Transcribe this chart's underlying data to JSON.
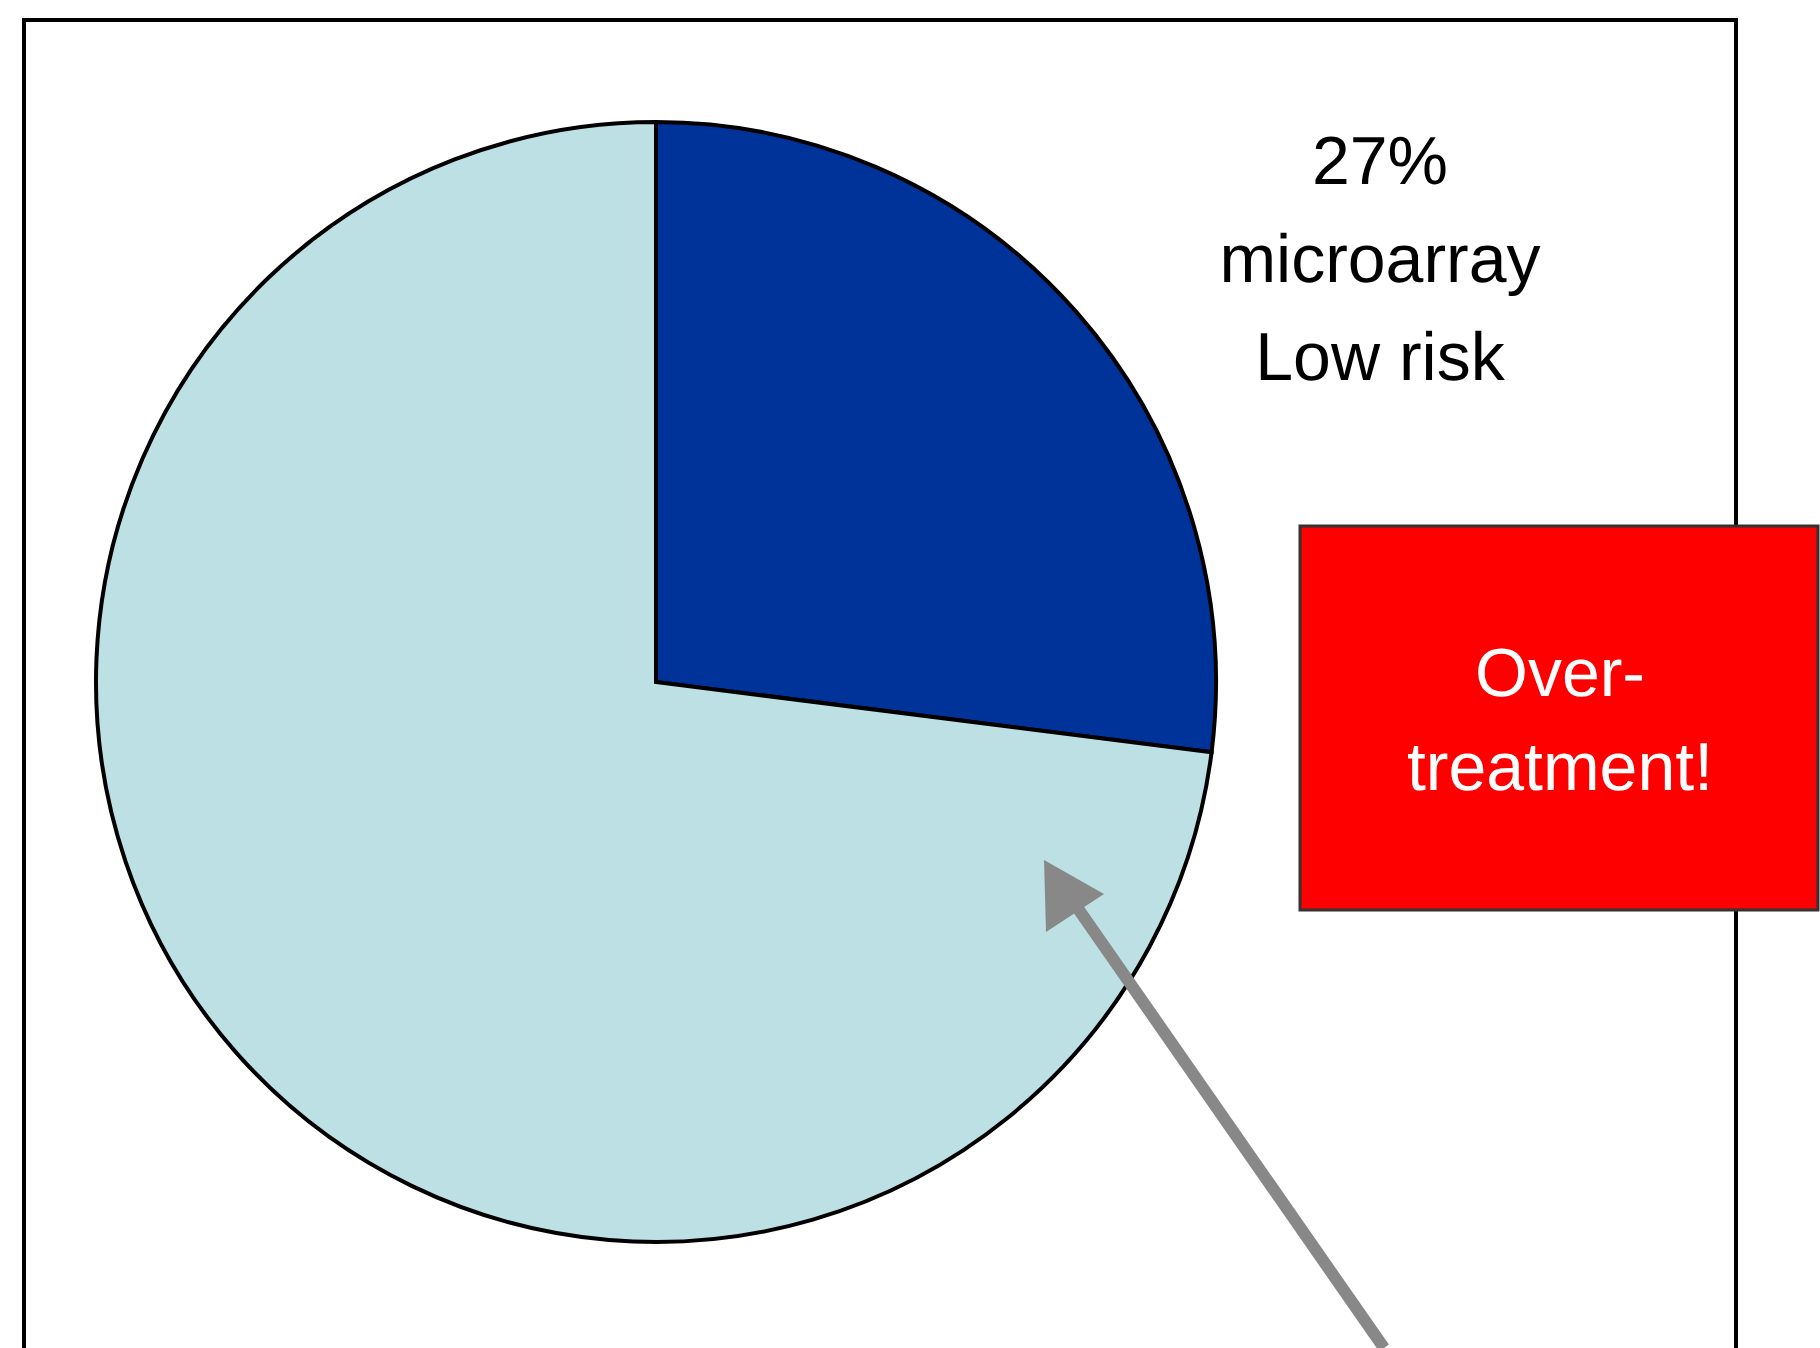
{
  "chart_data": {
    "type": "pie",
    "categories": [
      "microarray Low risk",
      null
    ],
    "values": [
      27,
      73
    ],
    "colors": [
      "#003399",
      "#bce0e4"
    ],
    "value_labels": [
      "27%",
      null
    ],
    "annotations": [
      "Over-treatment!"
    ]
  }
}
